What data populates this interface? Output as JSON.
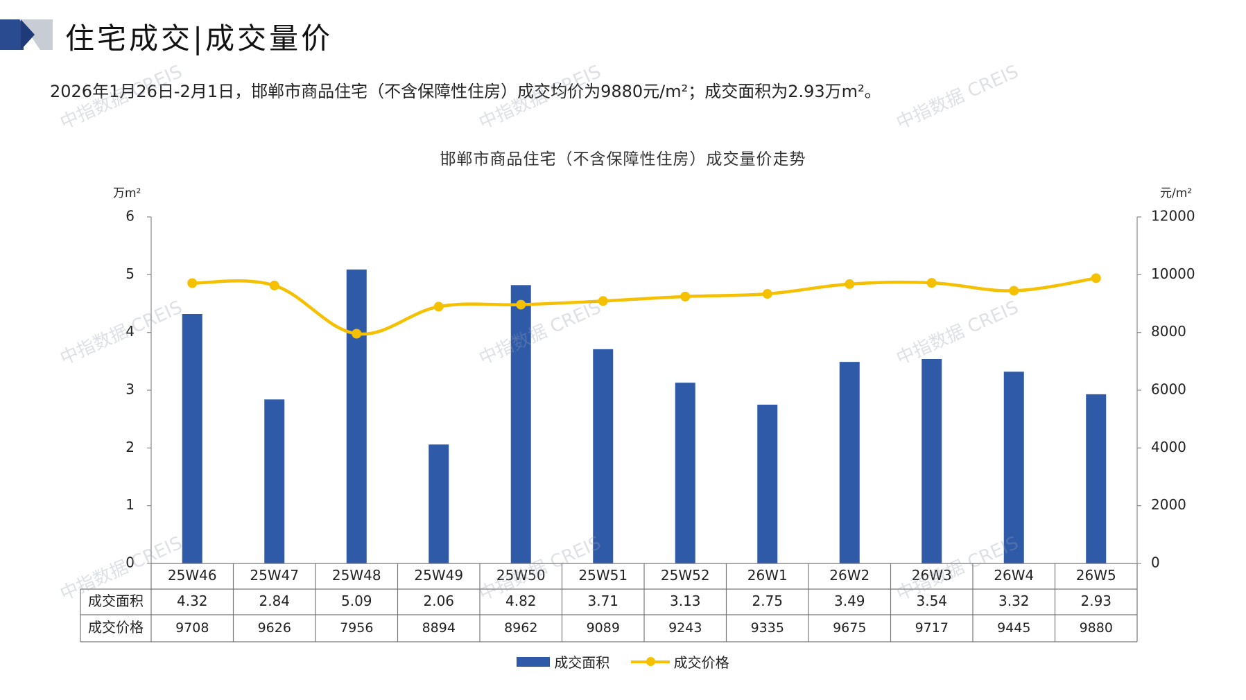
{
  "header": {
    "title": "住宅成交|成交量价",
    "summary": "2026年1月26日-2月1日，邯郸市商品住宅（不含保障性住房）成交均价为9880元/m²；成交面积为2.93万m²。"
  },
  "watermark_text": "中指数据 CREIS",
  "colors": {
    "bar": "#2E5AA8",
    "line": "#F5C000",
    "logo_dark": "#2A4B8F",
    "logo_light": "#C8CCD4"
  },
  "chart_data": {
    "type": "bar",
    "title": "邯郸市商品住宅（不含保障性住房）成交量价走势",
    "categories": [
      "25W46",
      "25W47",
      "25W48",
      "25W49",
      "25W50",
      "25W51",
      "25W52",
      "26W1",
      "26W2",
      "26W3",
      "26W4",
      "26W5"
    ],
    "series": [
      {
        "name": "成交面积",
        "type": "bar",
        "axis": "left",
        "values": [
          4.32,
          2.84,
          5.09,
          2.06,
          4.82,
          3.71,
          3.13,
          2.75,
          3.49,
          3.54,
          3.32,
          2.93
        ],
        "labels": [
          "4.32",
          "2.84",
          "5.09",
          "2.06",
          "4.82",
          "3.71",
          "3.13",
          "2.75",
          "3.49",
          "3.54",
          "3.32",
          "2.93"
        ]
      },
      {
        "name": "成交价格",
        "type": "line",
        "axis": "right",
        "values": [
          9708,
          9626,
          7956,
          8894,
          8962,
          9089,
          9243,
          9335,
          9675,
          9717,
          9445,
          9880
        ],
        "labels": [
          "9708",
          "9626",
          "7956",
          "8894",
          "8962",
          "9089",
          "9243",
          "9335",
          "9675",
          "9717",
          "9445",
          "9880"
        ]
      }
    ],
    "y_left": {
      "unit": "万m²",
      "ylim": [
        0,
        6
      ],
      "ticks": [
        "0",
        "1",
        "2",
        "3",
        "4",
        "5",
        "6"
      ]
    },
    "y_right": {
      "unit": "元/m²",
      "ylim": [
        0,
        12000
      ],
      "ticks": [
        "0",
        "2000",
        "4000",
        "6000",
        "8000",
        "10000",
        "12000"
      ]
    },
    "grid": false,
    "legend": "bottom-center",
    "data_table": true
  }
}
